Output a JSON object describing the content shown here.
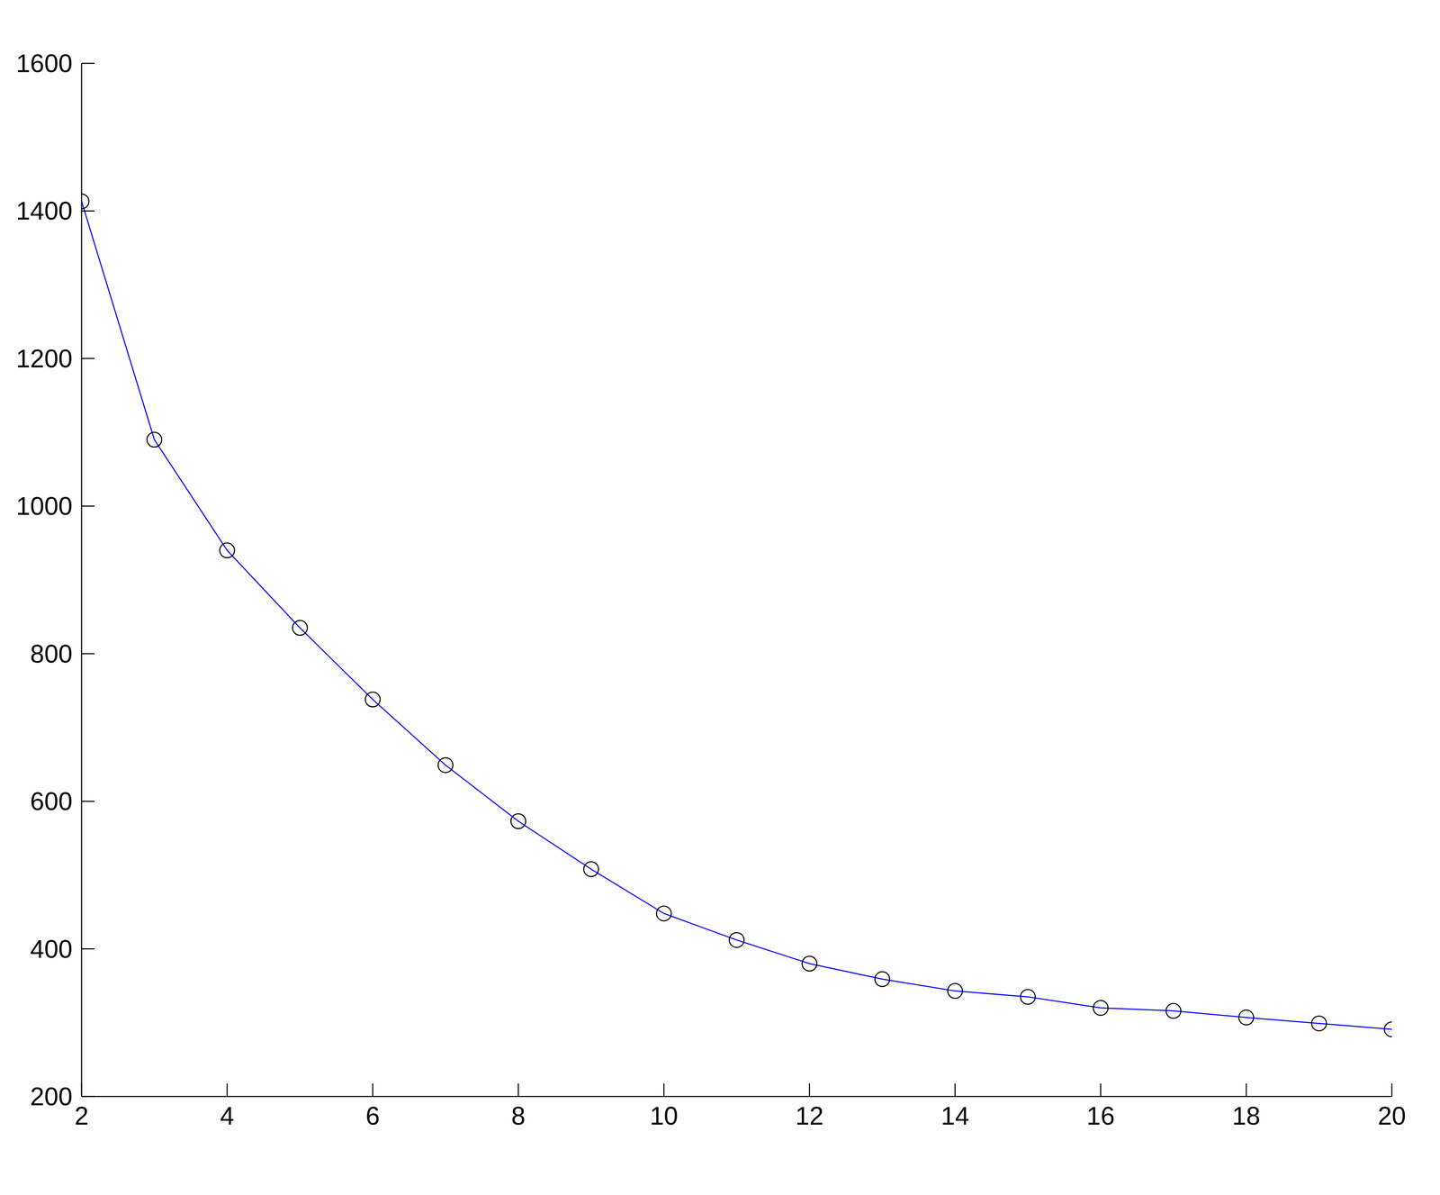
{
  "chart_data": {
    "type": "line",
    "x": [
      2,
      3,
      4,
      5,
      6,
      7,
      8,
      9,
      10,
      11,
      12,
      13,
      14,
      15,
      16,
      17,
      18,
      19,
      20
    ],
    "values": [
      1413,
      1090,
      940,
      835,
      738,
      649,
      573,
      508,
      448,
      412,
      380,
      359,
      343,
      335,
      320,
      316,
      307,
      299,
      291
    ],
    "color": "#0000ff",
    "marker": "circle",
    "xlim": [
      2,
      20
    ],
    "xticks": [
      2,
      4,
      6,
      8,
      10,
      12,
      14,
      16,
      18,
      20
    ],
    "ylim": [
      200,
      1600
    ],
    "yticks": [
      200,
      400,
      600,
      800,
      1000,
      1200,
      1400,
      1600
    ],
    "grid": false
  }
}
